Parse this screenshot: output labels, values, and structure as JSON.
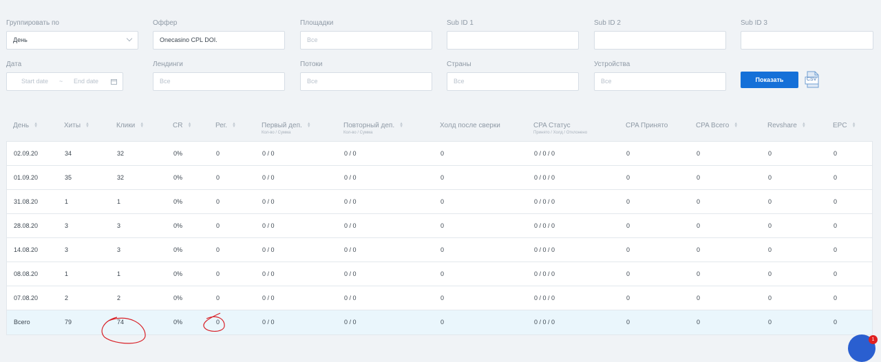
{
  "filters": {
    "group_by": {
      "label": "Группировать по",
      "value": "День"
    },
    "offer": {
      "label": "Оффер",
      "value": "Onecasino CPL DOI."
    },
    "sites": {
      "label": "Площадки",
      "placeholder": "Все"
    },
    "sub1": {
      "label": "Sub ID 1",
      "value": ""
    },
    "sub2": {
      "label": "Sub ID 2",
      "value": ""
    },
    "sub3": {
      "label": "Sub ID 3",
      "value": ""
    },
    "date": {
      "label": "Дата",
      "start": "Start date",
      "sep": "~",
      "end": "End date"
    },
    "landings": {
      "label": "Лендинги",
      "placeholder": "Все"
    },
    "streams": {
      "label": "Потоки",
      "placeholder": "Все"
    },
    "countries": {
      "label": "Страны",
      "placeholder": "Все"
    },
    "devices": {
      "label": "Устройства",
      "placeholder": "Все"
    }
  },
  "show_button": "Показать",
  "csv_label": "CSV",
  "columns": [
    {
      "label": "День",
      "sortable": true
    },
    {
      "label": "Хиты",
      "sortable": true
    },
    {
      "label": "Клики",
      "sortable": true
    },
    {
      "label": "CR",
      "sortable": true
    },
    {
      "label": "Рег.",
      "sortable": true
    },
    {
      "label": "Первый деп.",
      "sub": "Кол-во / Сумма",
      "sortable": true
    },
    {
      "label": "Повторный деп.",
      "sub": "Кол-во / Сумма",
      "sortable": true
    },
    {
      "label": "Холд после сверки",
      "sortable": false
    },
    {
      "label": "CPA Статус",
      "sub": "Принято / Холд / Отклонено",
      "sortable": false
    },
    {
      "label": "CPA Принято",
      "sortable": false
    },
    {
      "label": "CPA Всего",
      "sortable": true
    },
    {
      "label": "Revshare",
      "sortable": true
    },
    {
      "label": "EPC",
      "sortable": true
    }
  ],
  "rows": [
    [
      "02.09.20",
      "34",
      "32",
      "0%",
      "0",
      "0 / 0",
      "0 / 0",
      "0",
      "0 / 0 / 0",
      "0",
      "0",
      "0",
      "0"
    ],
    [
      "01.09.20",
      "35",
      "32",
      "0%",
      "0",
      "0 / 0",
      "0 / 0",
      "0",
      "0 / 0 / 0",
      "0",
      "0",
      "0",
      "0"
    ],
    [
      "31.08.20",
      "1",
      "1",
      "0%",
      "0",
      "0 / 0",
      "0 / 0",
      "0",
      "0 / 0 / 0",
      "0",
      "0",
      "0",
      "0"
    ],
    [
      "28.08.20",
      "3",
      "3",
      "0%",
      "0",
      "0 / 0",
      "0 / 0",
      "0",
      "0 / 0 / 0",
      "0",
      "0",
      "0",
      "0"
    ],
    [
      "14.08.20",
      "3",
      "3",
      "0%",
      "0",
      "0 / 0",
      "0 / 0",
      "0",
      "0 / 0 / 0",
      "0",
      "0",
      "0",
      "0"
    ],
    [
      "08.08.20",
      "1",
      "1",
      "0%",
      "0",
      "0 / 0",
      "0 / 0",
      "0",
      "0 / 0 / 0",
      "0",
      "0",
      "0",
      "0"
    ],
    [
      "07.08.20",
      "2",
      "2",
      "0%",
      "0",
      "0 / 0",
      "0 / 0",
      "0",
      "0 / 0 / 0",
      "0",
      "0",
      "0",
      "0"
    ]
  ],
  "total": [
    "Всего",
    "79",
    "74",
    "0%",
    "0",
    "0 / 0",
    "0 / 0",
    "0",
    "0 / 0 / 0",
    "0",
    "0",
    "0",
    "0"
  ],
  "chat_badge": "1",
  "colors": {
    "accent": "#1570d8",
    "total_row": "#eaf6fc",
    "annotation": "#d81f26"
  }
}
